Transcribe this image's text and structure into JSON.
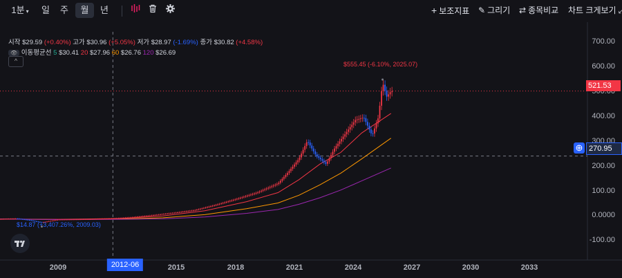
{
  "toolbar": {
    "interval": "1분",
    "periods": [
      "일",
      "주",
      "월",
      "년"
    ],
    "active_period": "월",
    "right": {
      "indicators": "보조지표",
      "draw": "그리기",
      "compare": "종목비교",
      "chart_size": "차트 크게보기"
    }
  },
  "legend": {
    "open_label": "시작",
    "open": "$29.59",
    "open_chg": "(+0.40%)",
    "high_label": "고가",
    "high": "$30.96",
    "high_chg": "(+5.05%)",
    "low_label": "저가",
    "low": "$28.97",
    "low_chg": "(-1.69%)",
    "close_label": "종가",
    "close": "$30.82",
    "close_chg": "(+4.58%)",
    "ma_label": "이동평균선",
    "ma5_period": "5",
    "ma5": "$30.41",
    "ma20_period": "20",
    "ma20": "$27.96",
    "ma60_period": "60",
    "ma60": "$26.76",
    "ma120_period": "120",
    "ma120": "$26.69"
  },
  "annotations": {
    "high": "$555.45 (-6.10%, 2025.07)",
    "low": "$14.87 (+3,407.26%, 2009.03)"
  },
  "price_tags": {
    "last": "521.53",
    "crosshair": "270.95"
  },
  "crosshair_date": "2012-06",
  "colors": {
    "up": "#f23645",
    "down": "#2962ff",
    "ma5": "#22ab94",
    "ma20": "#f23645",
    "ma60": "#ff9800",
    "ma120": "#9c27b0",
    "bg": "#131318"
  },
  "chart_data": {
    "type": "line",
    "title": "",
    "x_ticks": [
      "2009",
      "2012-06",
      "2015",
      "2018",
      "2021",
      "2024",
      "2027",
      "2030",
      "2033"
    ],
    "y_ticks": [
      "700.00",
      "600.00",
      "500.00",
      "400.00",
      "300.00",
      "200.00",
      "100.00",
      "0.0000",
      "-100.00"
    ],
    "ylim": [
      -130,
      750
    ],
    "xlim": [
      2007.2,
      2035.3
    ],
    "series": [
      {
        "name": "price",
        "x": [
          2007.2,
          2008,
          2008.5,
          2009.2,
          2010,
          2011,
          2012.5,
          2013.5,
          2014.5,
          2015.5,
          2016.5,
          2017.5,
          2018.5,
          2019.5,
          2020.5,
          2021.0,
          2021.5,
          2021.9,
          2022.3,
          2022.8,
          2023.2,
          2023.7,
          2024.2,
          2024.6,
          2025.0,
          2025.3,
          2025.5,
          2025.7,
          2025.9
        ],
        "values": [
          28,
          30,
          25,
          15,
          26,
          27,
          30,
          35,
          43,
          52,
          62,
          82,
          105,
          130,
          165,
          210,
          260,
          330,
          275,
          240,
          300,
          355,
          410,
          420,
          350,
          420,
          555,
          500,
          521
        ]
      },
      {
        "name": "MA20",
        "x": [
          2007.2,
          2010,
          2013,
          2015,
          2017,
          2019,
          2020.5,
          2021.5,
          2022.5,
          2023.5,
          2024.5,
          2025.9
        ],
        "values": [
          28,
          27,
          30,
          40,
          60,
          95,
          130,
          180,
          240,
          285,
          360,
          435
        ]
      },
      {
        "name": "MA60",
        "x": [
          2007.2,
          2010,
          2013,
          2015,
          2017,
          2019,
          2020.5,
          2021.5,
          2022.5,
          2023.5,
          2024.5,
          2025.9
        ],
        "values": [
          28,
          26,
          28,
          33,
          45,
          68,
          90,
          120,
          160,
          205,
          260,
          340
        ]
      },
      {
        "name": "MA120",
        "x": [
          2007.2,
          2010,
          2013,
          2015,
          2017,
          2019,
          2020.5,
          2021.5,
          2022.5,
          2023.5,
          2024.5,
          2025.9
        ],
        "values": [
          28,
          26,
          27,
          29,
          36,
          50,
          65,
          85,
          110,
          140,
          175,
          225
        ]
      }
    ]
  }
}
